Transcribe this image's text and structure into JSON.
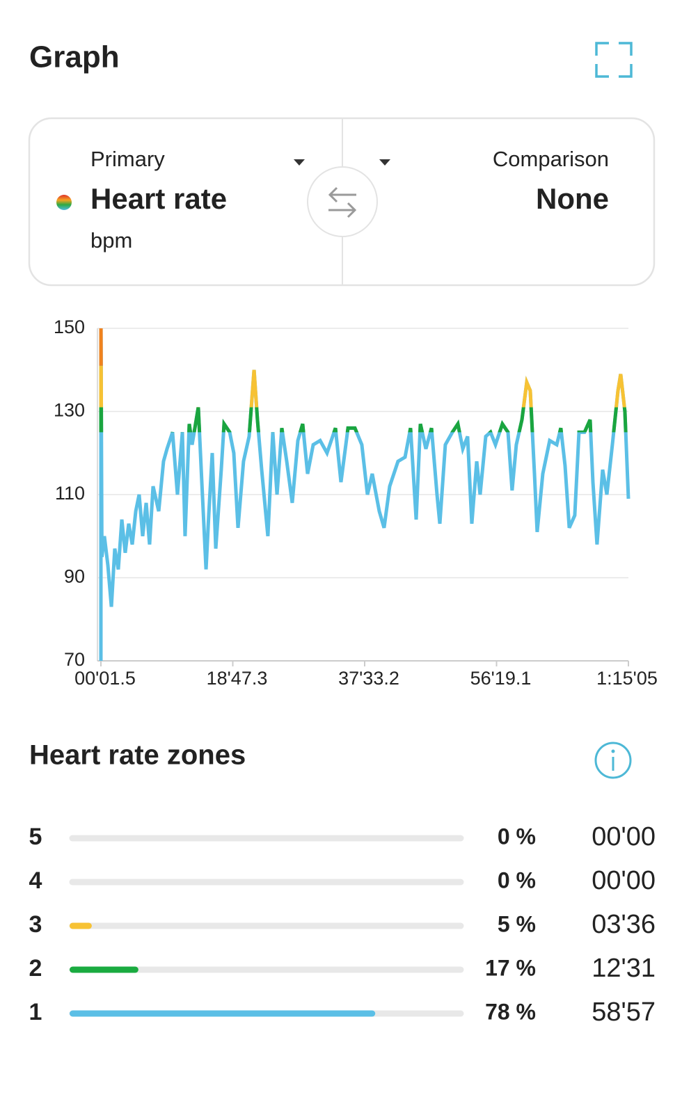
{
  "header": {
    "title": "Graph"
  },
  "selector": {
    "primary": {
      "label": "Primary",
      "metric": "Heart rate",
      "unit": "bpm"
    },
    "comparison": {
      "label": "Comparison",
      "metric": "None"
    }
  },
  "chart_data": {
    "type": "line",
    "x": [
      1.5,
      2,
      10,
      31,
      61,
      91,
      120,
      150,
      180,
      209,
      239,
      269,
      299,
      328,
      358,
      388,
      417,
      447,
      495,
      536,
      566,
      613,
      655,
      697,
      720,
      756,
      780,
      833,
      863,
      899,
      922,
      952,
      982,
      1029,
      1053,
      1101,
      1136,
      1172,
      1219,
      1267,
      1309,
      1338,
      1374,
      1427,
      1469,
      1505,
      1546,
      1588,
      1635,
      1683,
      1724,
      1766,
      1814,
      1873,
      1932,
      2004,
      2051,
      2111,
      2170,
      2229,
      2277,
      2318,
      2378,
      2419,
      2467,
      2538,
      2598,
      2645,
      2693,
      2729,
      2776,
      2824,
      2871,
      2895,
      2942,
      3002,
      3049,
      3091,
      3132,
      3168,
      3210,
      3239,
      3287,
      3328,
      3370,
      3429,
      3477,
      3512,
      3548,
      3596,
      3637,
      3667,
      3703,
      3726,
      3774,
      3833,
      3893,
      3928,
      3964,
      4000,
      4047,
      4083,
      4130,
      4178,
      4202,
      4237,
      4285,
      4321,
      4368,
      4416,
      4439,
      4475,
      4505
    ],
    "values": [
      70,
      150,
      95,
      100,
      93,
      83,
      97,
      92,
      104,
      96,
      103,
      98,
      106,
      110,
      100,
      108,
      98,
      112,
      106,
      118,
      121,
      125,
      110,
      125,
      100,
      127,
      122,
      131,
      113,
      92,
      105,
      120,
      97,
      116,
      127,
      125,
      120,
      102,
      118,
      124,
      140,
      128,
      116,
      100,
      125,
      110,
      126,
      118,
      108,
      123,
      127,
      115,
      122,
      123,
      120,
      126,
      113,
      126,
      126,
      122,
      110,
      115,
      106,
      102,
      112,
      118,
      119,
      126,
      104,
      127,
      121,
      126,
      110,
      103,
      122,
      125,
      127,
      121,
      124,
      103,
      118,
      110,
      124,
      125,
      122,
      127,
      125,
      111,
      122,
      128,
      137,
      135,
      115,
      101,
      115,
      123,
      122,
      126,
      117,
      102,
      105,
      125,
      125,
      128,
      113,
      98,
      116,
      110,
      122,
      135,
      139,
      130,
      109
    ],
    "color": "#5bbfe6",
    "color_levels": [
      125,
      131,
      141
    ],
    "level_colors": [
      "#1aa53f",
      "#f7c234",
      "#f0821e"
    ],
    "xlim": [
      1.5,
      4505
    ],
    "xticks": [
      {
        "value": 1.5,
        "label": "00'01.5"
      },
      {
        "value": 1127.3,
        "label": "18'47.3"
      },
      {
        "value": 2253.2,
        "label": "37'33.2"
      },
      {
        "value": 3379.1,
        "label": "56'19.1"
      },
      {
        "value": 4505,
        "label": "1:15'05"
      }
    ],
    "ylim": [
      70,
      150
    ],
    "yticks": [
      70,
      90,
      110,
      130,
      150
    ],
    "grid": true
  },
  "zones": {
    "title": "Heart rate zones",
    "rows": [
      {
        "zone": "5",
        "color": "#d0021b",
        "percent": 0,
        "percent_label": "0 %",
        "time": "00'00"
      },
      {
        "zone": "4",
        "color": "#f08a1c",
        "percent": 0,
        "percent_label": "0 %",
        "time": "00'00"
      },
      {
        "zone": "3",
        "color": "#f7c234",
        "percent": 5,
        "percent_label": "5 %",
        "time": "03'36"
      },
      {
        "zone": "2",
        "color": "#1aab40",
        "percent": 17,
        "percent_label": "17 %",
        "time": "12'31"
      },
      {
        "zone": "1",
        "color": "#5bbfe6",
        "percent": 78,
        "percent_label": "78 %",
        "time": "58'57"
      }
    ]
  }
}
